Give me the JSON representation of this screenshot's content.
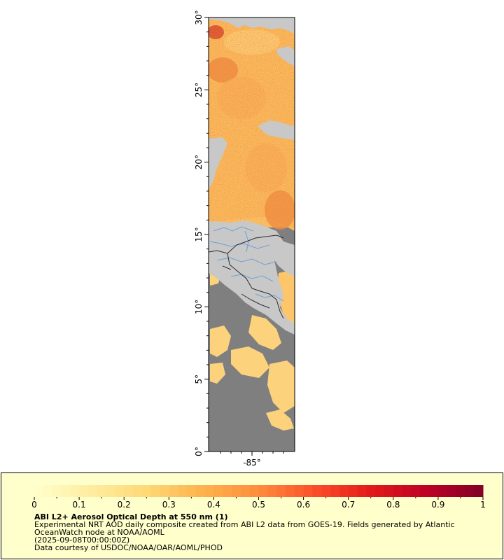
{
  "map": {
    "lat_ticks": [
      "30°",
      "25°",
      "20°",
      "15°",
      "10°",
      "5°",
      "0°"
    ],
    "lon_ticks": [
      "-85°"
    ],
    "colors": {
      "land": "#c8c8c8",
      "no_data": "#7f7f7f",
      "rivers": "#6f9fd8",
      "borders": "#2b2b2b"
    }
  },
  "legend": {
    "title": "ABI L2+ Aerosol Optical Depth at 550 nm (1)",
    "line1": "Experimental NRT AOD daily composite created from ABI L2 data from GOES-19. Fields generated by Atlantic",
    "line2": "OceanWatch node at NOAA/AOML",
    "line3": "(2025-09-08T00:00:00Z)",
    "line4": "Data courtesy of USDOC/NOAA/OAR/AOML/PHOD",
    "ticks": [
      "0",
      "0.1",
      "0.2",
      "0.3",
      "0.4",
      "0.5",
      "0.6",
      "0.7",
      "0.8",
      "0.9",
      "1"
    ],
    "range": [
      0,
      1
    ],
    "colormap": [
      "#ffffcc",
      "#ffeda0",
      "#fed976",
      "#feb24c",
      "#fd8d3c",
      "#fc4e2a",
      "#e31a1c",
      "#bd0026",
      "#800026"
    ]
  }
}
